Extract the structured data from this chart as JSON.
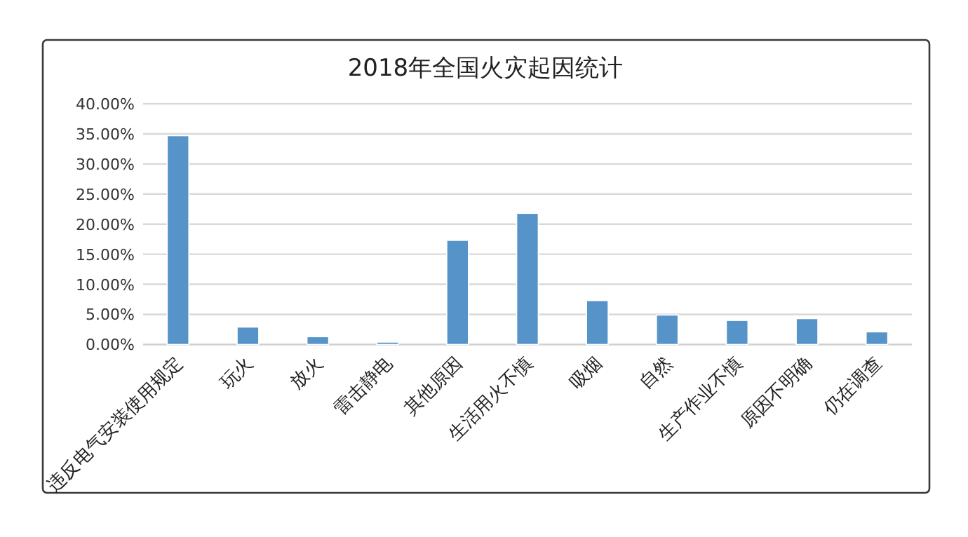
{
  "chart_data": {
    "type": "bar",
    "title": "2018年全国火灾起因统计",
    "categories": [
      "违反电气安装使用规定",
      "玩火",
      "放火",
      "雷击静电",
      "其他原因",
      "生活用火不慎",
      "吸烟",
      "自然",
      "生产作业不慎",
      "原因不明确",
      "仍在调查"
    ],
    "values": [
      34.7,
      2.9,
      1.3,
      0.4,
      17.3,
      21.8,
      7.3,
      4.9,
      4.0,
      4.3,
      2.1
    ],
    "color": "#5593c8",
    "ylim": [
      0,
      40
    ],
    "yticks": [
      {
        "value": 0,
        "label": "0.00%"
      },
      {
        "value": 5,
        "label": "5.00%"
      },
      {
        "value": 10,
        "label": "10.00%"
      },
      {
        "value": 15,
        "label": "15.00%"
      },
      {
        "value": 20,
        "label": "20.00%"
      },
      {
        "value": 25,
        "label": "25.00%"
      },
      {
        "value": 30,
        "label": "30.00%"
      },
      {
        "value": 35,
        "label": "35.00%"
      },
      {
        "value": 40,
        "label": "40.00%"
      }
    ],
    "grid": "y"
  }
}
